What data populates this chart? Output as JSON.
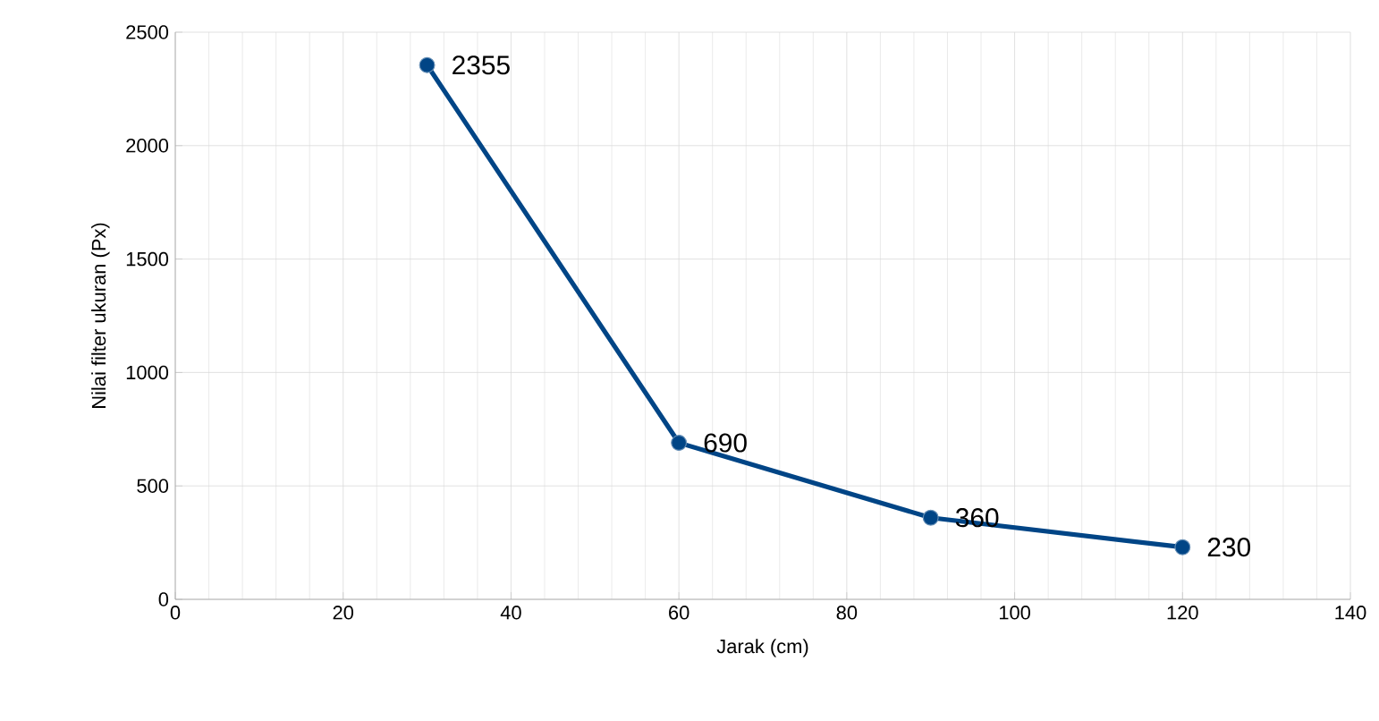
{
  "chart_data": {
    "type": "line",
    "xlabel": "Jarak (cm)",
    "ylabel": "Nilai filter ukuran (Px)",
    "x": [
      30,
      60,
      90,
      120
    ],
    "series": [
      {
        "color": "#004586",
        "values": [
          2355,
          690,
          360,
          230
        ]
      }
    ],
    "xlim": [
      0,
      140
    ],
    "xticks": [
      0,
      20,
      40,
      60,
      80,
      100,
      120,
      140
    ],
    "ylim": [
      0,
      2500
    ],
    "yticks": [
      0,
      500,
      1000,
      1500,
      2000,
      2500
    ],
    "grid": true,
    "marker": "circle",
    "line_style": "solid",
    "data_labels": true
  }
}
